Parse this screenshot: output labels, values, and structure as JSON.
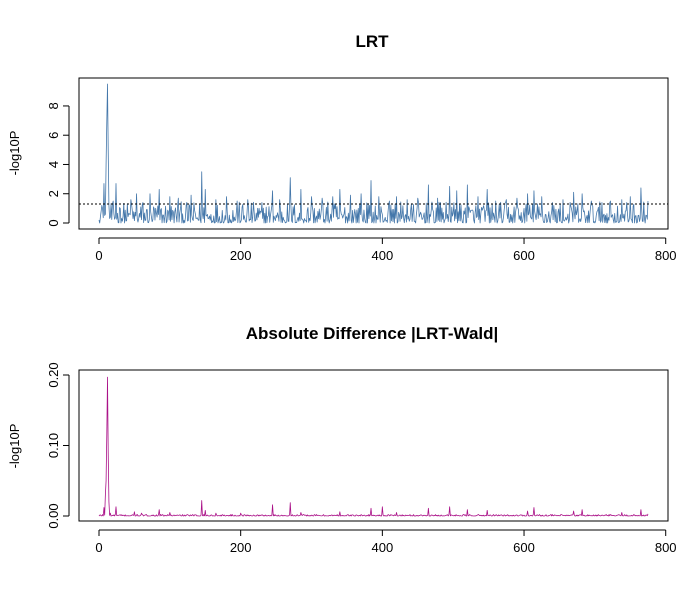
{
  "chart_data": [
    {
      "type": "line",
      "title": "LRT",
      "xlabel": "",
      "ylabel": "-log10P",
      "xlim": [
        0,
        775
      ],
      "ylim": [
        0,
        9.5
      ],
      "xticks": [
        0,
        200,
        400,
        600,
        800
      ],
      "xtick_labels": [
        "0",
        "200",
        "400",
        "600",
        "800"
      ],
      "yticks": [
        0,
        2,
        4,
        6,
        8
      ],
      "ytick_labels": [
        "0",
        "2",
        "4",
        "6",
        "8"
      ],
      "threshold": 1.3,
      "threshold_style": "dotted",
      "color": "#4477AA",
      "grid": false,
      "n_points": 775,
      "peaks": [
        [
          0,
          0.2
        ],
        [
          3,
          0.8
        ],
        [
          5,
          1.0
        ],
        [
          7,
          2.7
        ],
        [
          9,
          0.6
        ],
        [
          10,
          4.0
        ],
        [
          11,
          6.9
        ],
        [
          12,
          9.5
        ],
        [
          13,
          5.0
        ],
        [
          14,
          1.2
        ],
        [
          16,
          0.4
        ],
        [
          20,
          1.5
        ],
        [
          24,
          2.7
        ],
        [
          30,
          1.0
        ],
        [
          45,
          1.6
        ],
        [
          53,
          2.0
        ],
        [
          62,
          1.4
        ],
        [
          72,
          2.0
        ],
        [
          85,
          2.3
        ],
        [
          100,
          1.8
        ],
        [
          112,
          1.7
        ],
        [
          130,
          1.9
        ],
        [
          145,
          3.5
        ],
        [
          150,
          2.3
        ],
        [
          165,
          1.6
        ],
        [
          180,
          1.8
        ],
        [
          195,
          1.5
        ],
        [
          210,
          1.6
        ],
        [
          230,
          1.4
        ],
        [
          245,
          2.2
        ],
        [
          255,
          1.6
        ],
        [
          270,
          3.1
        ],
        [
          285,
          2.3
        ],
        [
          300,
          1.8
        ],
        [
          315,
          1.7
        ],
        [
          330,
          1.8
        ],
        [
          340,
          2.3
        ],
        [
          355,
          1.9
        ],
        [
          370,
          2.0
        ],
        [
          384,
          2.9
        ],
        [
          395,
          1.8
        ],
        [
          410,
          1.5
        ],
        [
          420,
          1.8
        ],
        [
          435,
          1.6
        ],
        [
          450,
          1.7
        ],
        [
          465,
          2.6
        ],
        [
          478,
          1.7
        ],
        [
          495,
          2.5
        ],
        [
          505,
          2.2
        ],
        [
          520,
          2.6
        ],
        [
          535,
          1.8
        ],
        [
          548,
          2.3
        ],
        [
          560,
          1.5
        ],
        [
          575,
          1.6
        ],
        [
          590,
          1.7
        ],
        [
          605,
          2.0
        ],
        [
          614,
          2.2
        ],
        [
          625,
          1.8
        ],
        [
          640,
          1.4
        ],
        [
          655,
          1.6
        ],
        [
          670,
          2.1
        ],
        [
          682,
          2.0
        ],
        [
          695,
          1.5
        ],
        [
          710,
          1.4
        ],
        [
          722,
          1.5
        ],
        [
          738,
          1.6
        ],
        [
          750,
          1.8
        ],
        [
          765,
          2.4
        ],
        [
          775,
          1.5
        ]
      ]
    },
    {
      "type": "line",
      "title": "Absolute Difference |LRT-Wald|",
      "xlabel": "",
      "ylabel": "-log10P",
      "xlim": [
        0,
        775
      ],
      "ylim": [
        0,
        0.2
      ],
      "xticks": [
        0,
        200,
        400,
        600,
        800
      ],
      "xtick_labels": [
        "0",
        "200",
        "400",
        "600",
        "800"
      ],
      "yticks": [
        0,
        0.1,
        0.2
      ],
      "ytick_labels": [
        "0.00",
        "0.10",
        "0.20"
      ],
      "color": "#AA1188",
      "grid": false,
      "n_points": 775,
      "peaks": [
        [
          0,
          0.0
        ],
        [
          5,
          0.002
        ],
        [
          7,
          0.012
        ],
        [
          9,
          0.03
        ],
        [
          10,
          0.05
        ],
        [
          11,
          0.115
        ],
        [
          12,
          0.197
        ],
        [
          13,
          0.09
        ],
        [
          14,
          0.02
        ],
        [
          16,
          0.004
        ],
        [
          24,
          0.013
        ],
        [
          50,
          0.006
        ],
        [
          60,
          0.004
        ],
        [
          85,
          0.009
        ],
        [
          100,
          0.005
        ],
        [
          145,
          0.022
        ],
        [
          150,
          0.008
        ],
        [
          165,
          0.004
        ],
        [
          200,
          0.004
        ],
        [
          245,
          0.016
        ],
        [
          270,
          0.019
        ],
        [
          285,
          0.005
        ],
        [
          340,
          0.006
        ],
        [
          384,
          0.011
        ],
        [
          400,
          0.013
        ],
        [
          420,
          0.005
        ],
        [
          465,
          0.011
        ],
        [
          495,
          0.013
        ],
        [
          520,
          0.009
        ],
        [
          548,
          0.008
        ],
        [
          605,
          0.007
        ],
        [
          614,
          0.012
        ],
        [
          670,
          0.007
        ],
        [
          682,
          0.009
        ],
        [
          738,
          0.005
        ],
        [
          765,
          0.009
        ],
        [
          775,
          0.003
        ]
      ]
    }
  ]
}
